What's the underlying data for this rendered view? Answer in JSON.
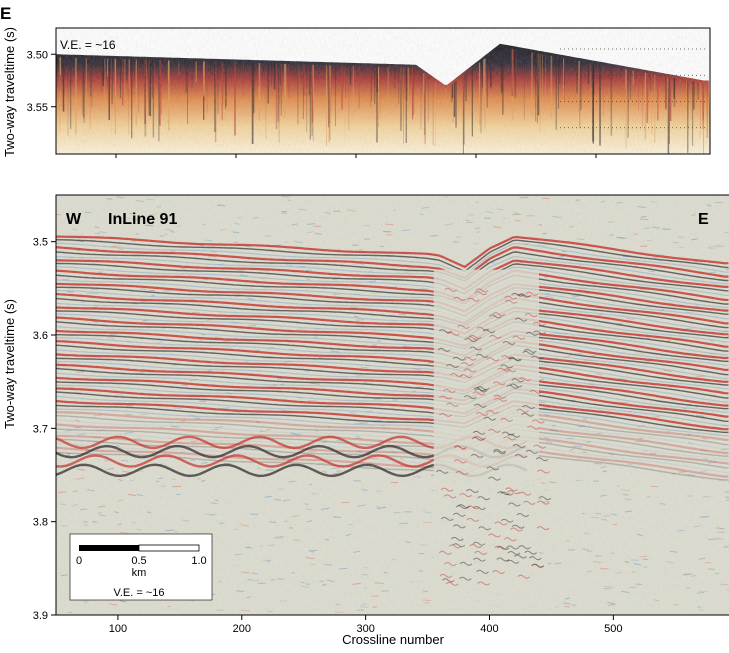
{
  "panel_letter": "E",
  "top_panel": {
    "ylabel": "Two-way traveltime (s)",
    "vertical_exaggeration": "V.E. = ~16",
    "yticks": [
      "3.50",
      "3.55"
    ]
  },
  "bottom_panel": {
    "left_label": "W",
    "title": "InLine 91",
    "right_label": "E",
    "ylabel": "Two-way traveltime (s)",
    "xlabel": "Crossline number",
    "yticks": [
      "3.5",
      "3.6",
      "3.7",
      "3.8",
      "3.9"
    ],
    "xticks": [
      "100",
      "200",
      "300",
      "400",
      "500"
    ],
    "scale_bar": {
      "labels": [
        "0",
        "0.5",
        "1.0"
      ],
      "unit": "km",
      "vertical_exaggeration": "V.E. = ~16"
    }
  },
  "colors": {
    "reflector_red": "#c8322a",
    "reflector_dark": "#2a2326",
    "background_noise": "#dcdccf",
    "top_fill": "#f3d39a"
  },
  "chart_data": {
    "type": "seismic-section",
    "x_range": [
      50,
      595
    ],
    "top_panel": {
      "y_range": [
        3.475,
        3.595
      ],
      "seafloor_twt_approx": [
        [
          50,
          3.5
        ],
        [
          350,
          3.51
        ],
        [
          375,
          3.53
        ],
        [
          420,
          3.49
        ],
        [
          590,
          3.525
        ]
      ]
    },
    "bottom_panel": {
      "y_range": [
        3.45,
        3.9
      ],
      "seafloor_twt_approx": [
        [
          50,
          3.49
        ],
        [
          350,
          3.51
        ],
        [
          380,
          3.515
        ],
        [
          420,
          3.49
        ],
        [
          590,
          3.52
        ]
      ]
    }
  }
}
